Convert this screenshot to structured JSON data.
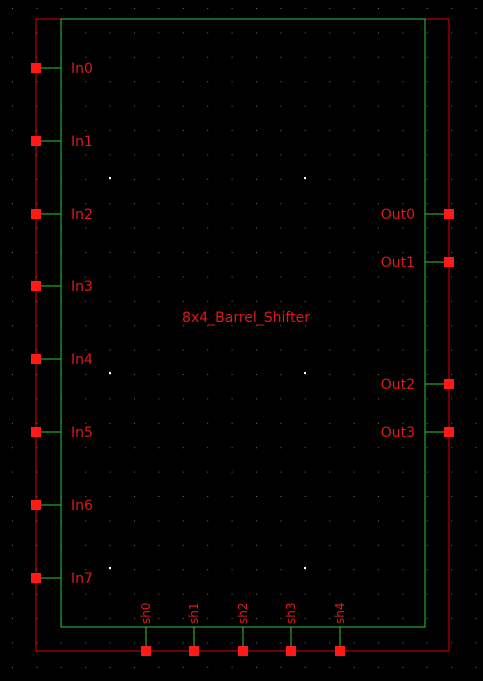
{
  "symbol": {
    "name": "8x4_Barrel_Shifter"
  },
  "pins": {
    "left": [
      "In0",
      "In1",
      "In2",
      "In3",
      "In4",
      "In5",
      "In6",
      "In7"
    ],
    "right": [
      "Out0",
      "Out1",
      "Out2",
      "Out3"
    ],
    "bottom": [
      "sh0",
      "sh1",
      "sh2",
      "sh3",
      "sh4"
    ]
  },
  "colors": {
    "background": "#000000",
    "grid_dot": "#6b6b6b",
    "body_outline": "#2ecc2e",
    "selection_box": "#e00000",
    "pin": "#ff1a1a",
    "label_text": "#e01818"
  }
}
